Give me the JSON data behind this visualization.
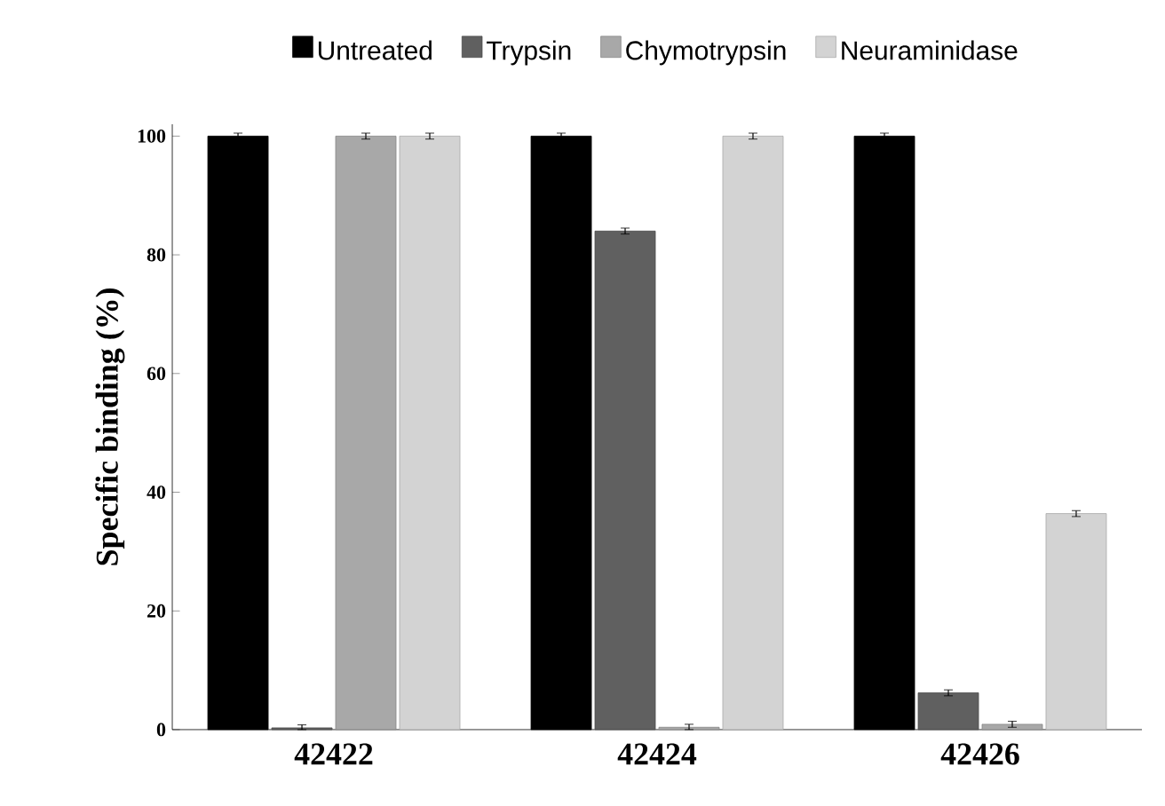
{
  "chart_data": {
    "type": "bar",
    "ylabel": "Specific binding (%)",
    "categories": [
      "42422",
      "42424",
      "42426"
    ],
    "series": [
      {
        "name": "Untreated",
        "color": "#000000",
        "values": [
          100,
          100,
          100
        ],
        "errors": [
          0.5,
          0.5,
          0.5
        ]
      },
      {
        "name": "Trypsin",
        "color": "#606060",
        "values": [
          0.3,
          84,
          6.2
        ],
        "errors": [
          [
            0.3,
            0.5
          ],
          0.5,
          0.5
        ]
      },
      {
        "name": "Chymotrypsin",
        "color": "#a8a8a8",
        "values": [
          100,
          0.4,
          0.9
        ],
        "errors": [
          0.5,
          [
            0.4,
            0.5
          ],
          0.5
        ]
      },
      {
        "name": "Neuraminidase",
        "color": "#d3d3d3",
        "values": [
          100,
          100,
          36.4
        ],
        "errors": [
          0.5,
          0.5,
          0.5
        ]
      }
    ],
    "ylim": [
      0,
      102
    ],
    "yticks": [
      0,
      20,
      40,
      60,
      80,
      100
    ],
    "grid": false,
    "legend": "top"
  }
}
